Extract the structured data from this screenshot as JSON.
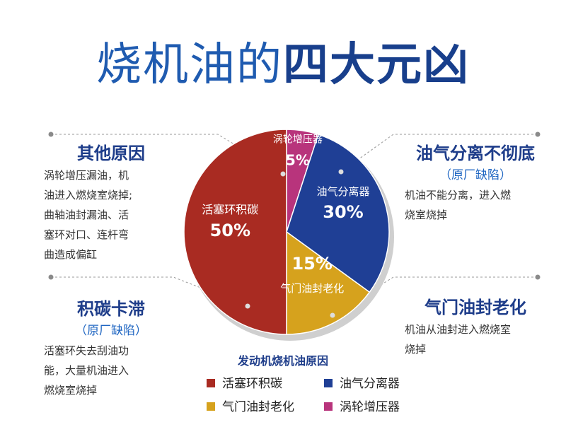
{
  "title": {
    "light": "烧机油的",
    "bold": "四大元凶"
  },
  "left_top": {
    "heading": "其他原因",
    "lines": [
      "涡轮增压漏油，机",
      "油进入燃烧室烧掉;",
      "曲轴油封漏油、活",
      "塞环对口、连杆弯",
      "曲造成偏缸"
    ]
  },
  "left_bottom": {
    "heading": "积碳卡滞",
    "sub": "（原厂缺陷）",
    "lines": [
      "活塞环失去刮油功",
      "能，大量机油进入",
      "燃烧室烧掉"
    ]
  },
  "right_top": {
    "heading": "油气分离不彻底",
    "sub": "（原厂缺陷）",
    "lines": [
      "机油不能分离，进入燃",
      "烧室烧掉"
    ]
  },
  "right_bottom": {
    "heading": "气门油封老化",
    "lines": [
      "机油从油封进入燃烧室",
      "烧掉"
    ]
  },
  "chart_data": {
    "type": "pie",
    "title": "发动机烧机油原因",
    "slices": [
      {
        "label": "活塞环积碳",
        "value": 50,
        "display": "50%",
        "color": "#a92b22"
      },
      {
        "label": "气门油封老化",
        "value": 15,
        "display": "15%",
        "color": "#d6a21d"
      },
      {
        "label": "油气分离器",
        "value": 30,
        "display": "30%",
        "color": "#1f3f95"
      },
      {
        "label": "涡轮增压器",
        "value": 5,
        "display": "5%",
        "color": "#b8347c"
      }
    ],
    "legend": [
      {
        "label": "活塞环积碳",
        "color": "#a92b22"
      },
      {
        "label": "油气分离器",
        "color": "#1f3f95"
      },
      {
        "label": "气门油封老化",
        "color": "#d6a21d"
      },
      {
        "label": "涡轮增压器",
        "color": "#b8347c"
      }
    ],
    "legend_position": "bottom"
  }
}
